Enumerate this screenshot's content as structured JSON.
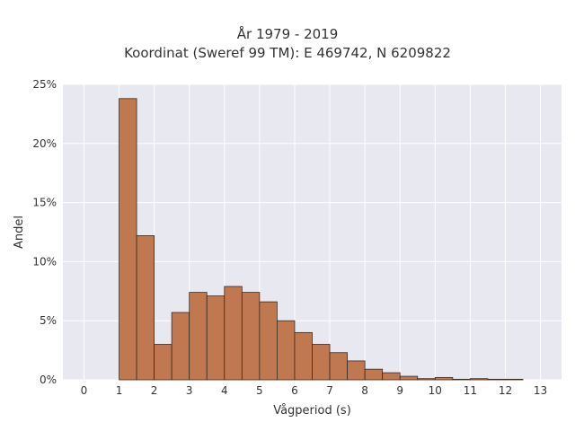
{
  "chart_data": {
    "type": "bar",
    "title_line1": "År 1979 - 2019",
    "title_line2": "Koordinat (Sweref 99 TM): E 469742, N 6209822",
    "xlabel": "Vågperiod (s)",
    "ylabel": "Andel",
    "xlim": [
      -0.6,
      13.6
    ],
    "ylim": [
      0,
      25
    ],
    "xticks": [
      "0",
      "1",
      "2",
      "3",
      "4",
      "5",
      "6",
      "7",
      "8",
      "9",
      "10",
      "11",
      "12",
      "13"
    ],
    "yticks": [
      "0%",
      "5%",
      "10%",
      "15%",
      "20%",
      "25%"
    ],
    "bin_width": 0.5,
    "bins": [
      {
        "x0": 1.0,
        "value": 23.8
      },
      {
        "x0": 1.5,
        "value": 12.2
      },
      {
        "x0": 2.0,
        "value": 3.0
      },
      {
        "x0": 2.5,
        "value": 5.7
      },
      {
        "x0": 3.0,
        "value": 7.4
      },
      {
        "x0": 3.5,
        "value": 7.1
      },
      {
        "x0": 4.0,
        "value": 7.9
      },
      {
        "x0": 4.5,
        "value": 7.4
      },
      {
        "x0": 5.0,
        "value": 6.6
      },
      {
        "x0": 5.5,
        "value": 5.0
      },
      {
        "x0": 6.0,
        "value": 4.0
      },
      {
        "x0": 6.5,
        "value": 3.0
      },
      {
        "x0": 7.0,
        "value": 2.3
      },
      {
        "x0": 7.5,
        "value": 1.6
      },
      {
        "x0": 8.0,
        "value": 0.9
      },
      {
        "x0": 8.5,
        "value": 0.6
      },
      {
        "x0": 9.0,
        "value": 0.3
      },
      {
        "x0": 9.5,
        "value": 0.1
      },
      {
        "x0": 10.0,
        "value": 0.2
      },
      {
        "x0": 10.5,
        "value": 0.05
      },
      {
        "x0": 11.0,
        "value": 0.1
      },
      {
        "x0": 11.5,
        "value": 0.05
      },
      {
        "x0": 12.0,
        "value": 0.05
      }
    ],
    "grid": true,
    "colors": {
      "bar": "#c07850",
      "bar_edge": "#3a2a20",
      "plot_bg": "#e8e8f0",
      "grid": "#ffffff"
    }
  }
}
